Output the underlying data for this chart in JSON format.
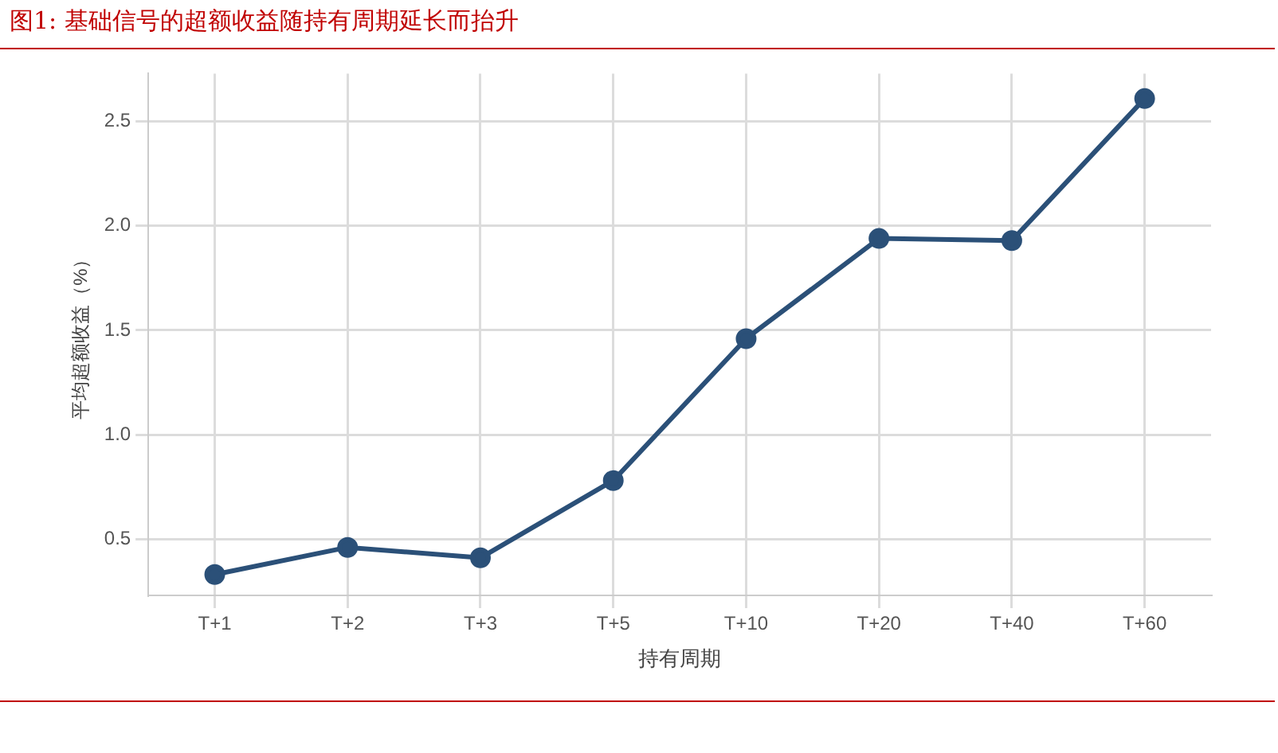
{
  "chart_data": {
    "type": "line",
    "title": "图1:  基础信号的超额收益随持有周期延长而抬升",
    "xlabel": "持有周期",
    "ylabel": "平均超额收益（%）",
    "categories": [
      "T+1",
      "T+2",
      "T+3",
      "T+5",
      "T+10",
      "T+20",
      "T+40",
      "T+60"
    ],
    "series": [
      {
        "color": "#2b5078",
        "values": [
          0.33,
          0.46,
          0.41,
          0.78,
          1.46,
          1.94,
          1.93,
          2.61
        ]
      }
    ],
    "ylim": [
      0.23,
      2.73
    ],
    "yticks": [
      {
        "value": 0.5,
        "label": "0.5"
      },
      {
        "value": 1.0,
        "label": "1.0"
      },
      {
        "value": 1.5,
        "label": "1.5"
      },
      {
        "value": 2.0,
        "label": "2.0"
      },
      {
        "value": 2.5,
        "label": "2.5"
      }
    ],
    "grid": true,
    "legend": false,
    "marker": "circle",
    "line_style": "solid"
  }
}
